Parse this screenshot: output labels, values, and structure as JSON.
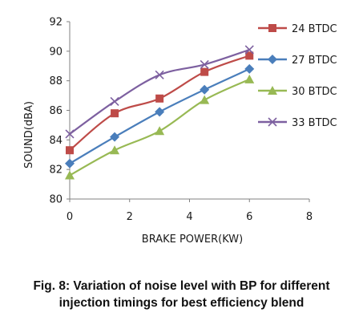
{
  "chart_data": {
    "type": "line",
    "title": "",
    "xlabel": "BRAKE POWER(KW)",
    "ylabel": "SOUND(dBA)",
    "xlim": [
      0,
      8
    ],
    "ylim": [
      80,
      92
    ],
    "xticks": [
      "0",
      "2",
      "4",
      "6",
      "8"
    ],
    "yticks": [
      "80",
      "82",
      "84",
      "86",
      "88",
      "90",
      "92"
    ],
    "grid": false,
    "legend_position": "right",
    "x": [
      0,
      1.5,
      3,
      4.5,
      6
    ],
    "series": [
      {
        "name": "24 BTDC",
        "values": [
          83.3,
          85.8,
          86.8,
          88.6,
          89.7
        ],
        "color": "#be4b48",
        "marker": "square"
      },
      {
        "name": "27 BTDC",
        "values": [
          82.4,
          84.2,
          85.9,
          87.4,
          88.8
        ],
        "color": "#4a7ebb",
        "marker": "diamond"
      },
      {
        "name": "30 BTDC",
        "values": [
          81.6,
          83.3,
          84.6,
          86.7,
          88.1
        ],
        "color": "#98b954",
        "marker": "triangle"
      },
      {
        "name": "33 BTDC",
        "values": [
          84.4,
          86.6,
          88.4,
          89.1,
          90.1
        ],
        "color": "#7d60a0",
        "marker": "x"
      }
    ]
  },
  "caption": {
    "line1": "Fig. 8: Variation of noise level with BP for different",
    "line2": "injection timings for best efficiency blend"
  }
}
